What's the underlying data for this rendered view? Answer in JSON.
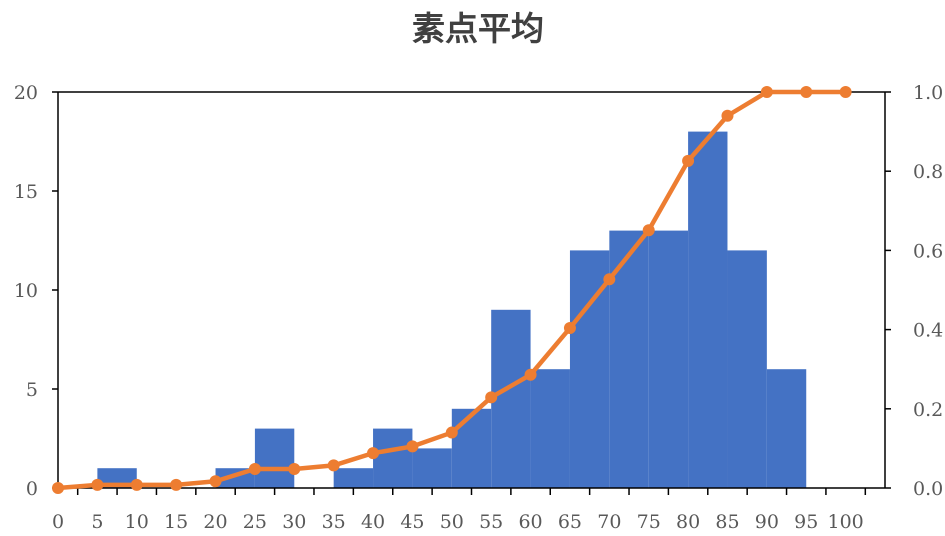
{
  "chart_data": {
    "type": "bar",
    "title": "素点平均",
    "xlabel": "",
    "ylabel": "",
    "x_ticks": [
      "0",
      "5",
      "10",
      "15",
      "20",
      "25",
      "30",
      "35",
      "40",
      "45",
      "50",
      "55",
      "60",
      "65",
      "70",
      "75",
      "80",
      "85",
      "90",
      "95",
      "100"
    ],
    "ylim": [
      0,
      20
    ],
    "y_ticks": [
      "0",
      "5",
      "10",
      "15",
      "20"
    ],
    "y2lim": [
      0,
      1.0
    ],
    "y2_ticks": [
      "0.0",
      "0.2",
      "0.4",
      "0.6",
      "0.8",
      "1.0"
    ],
    "grid": false,
    "legend": "none",
    "series": [
      {
        "kind": "bar",
        "axis": "left",
        "color": "#4472C4",
        "bins_start": [
          0,
          5,
          10,
          15,
          20,
          25,
          30,
          35,
          40,
          45,
          50,
          55,
          60,
          65,
          70,
          75,
          80,
          85,
          90,
          95
        ],
        "values": [
          0,
          1,
          0,
          0,
          1,
          3,
          0,
          1,
          3,
          2,
          4,
          9,
          6,
          12,
          13,
          13,
          18,
          12,
          6,
          0
        ]
      },
      {
        "kind": "line",
        "axis": "right",
        "color": "#ED7D31",
        "x": [
          0,
          5,
          10,
          15,
          20,
          25,
          30,
          35,
          40,
          45,
          50,
          55,
          60,
          65,
          70,
          75,
          80,
          85,
          90,
          95,
          100
        ],
        "values": [
          0.0,
          0.008,
          0.008,
          0.008,
          0.017,
          0.048,
          0.048,
          0.057,
          0.088,
          0.105,
          0.14,
          0.229,
          0.286,
          0.404,
          0.527,
          0.651,
          0.826,
          0.94,
          1.0,
          1.0,
          1.0
        ]
      }
    ]
  }
}
